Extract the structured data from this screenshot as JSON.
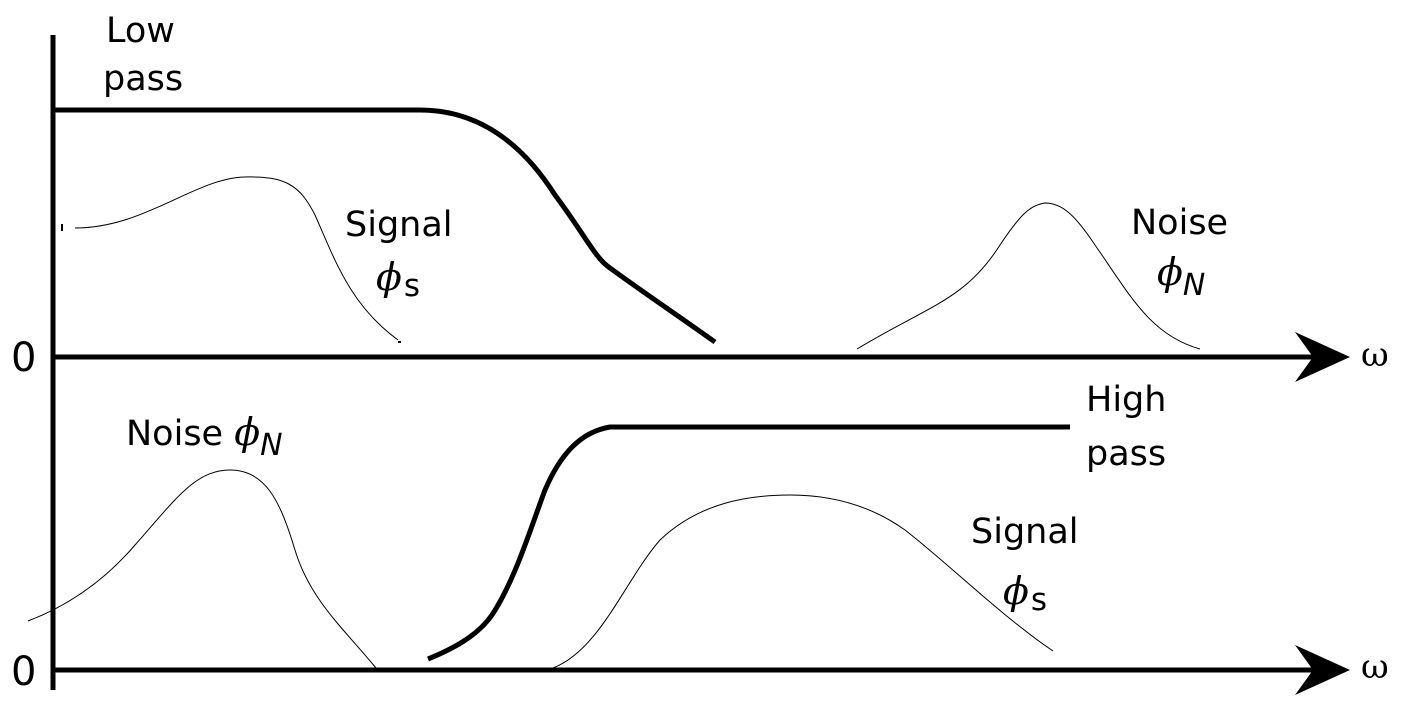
{
  "top_panel": {
    "filter_label_line1": "Low",
    "filter_label_line2": "pass",
    "signal_label": "Signal",
    "signal_symbol": "ϕ",
    "signal_subscript": "s",
    "noise_label": "Noise",
    "noise_symbol": "ϕ",
    "noise_subscript": "N",
    "origin_label": "0",
    "axis_label": "ω"
  },
  "bottom_panel": {
    "filter_label_line1": "High",
    "filter_label_line2": "pass",
    "signal_label": "Signal",
    "signal_symbol": "ϕ",
    "signal_subscript": "s",
    "noise_label": "Noise",
    "noise_symbol": "ϕ",
    "noise_subscript": "N",
    "origin_label": "0",
    "axis_label": "ω"
  },
  "colors": {
    "stroke": "#000000",
    "background": "#ffffff"
  }
}
